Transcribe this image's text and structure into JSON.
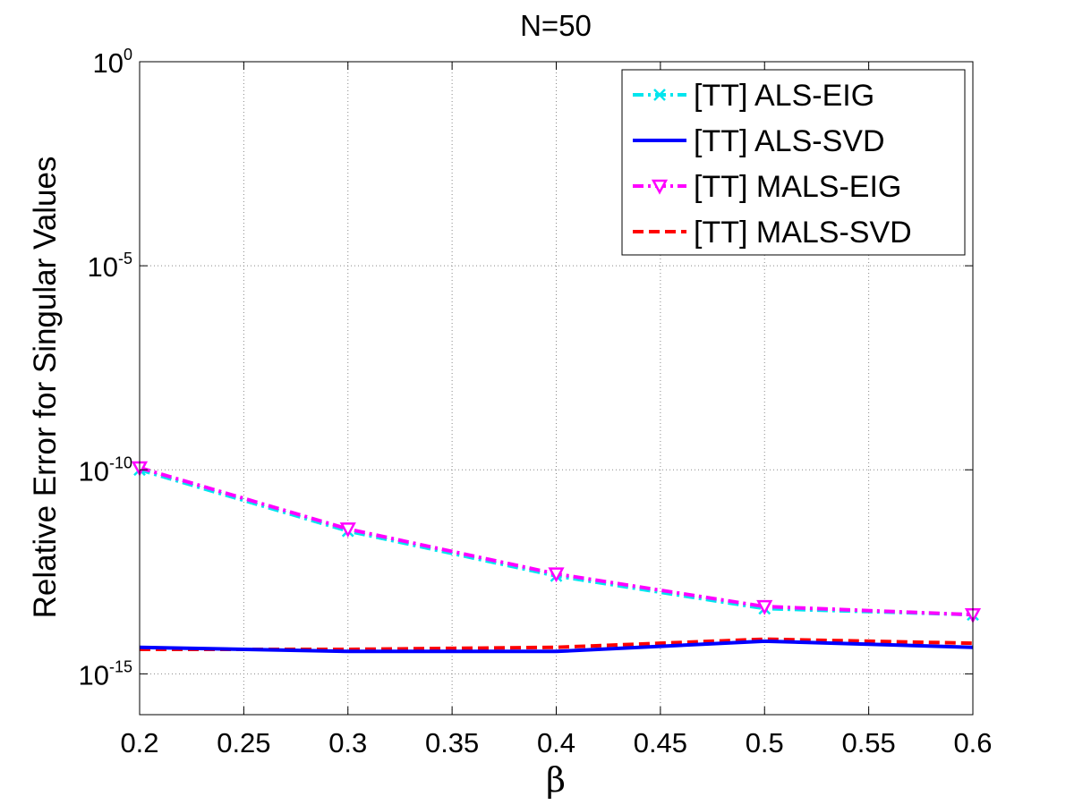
{
  "chart_data": {
    "type": "line",
    "title": "N=50",
    "xlabel": "β",
    "ylabel": "Relative Error for Singular Values",
    "yscale": "log",
    "xlim": [
      0.2,
      0.6
    ],
    "ylim_exp": [
      -16,
      0
    ],
    "x_ticks": [
      "0.2",
      "0.25",
      "0.3",
      "0.35",
      "0.4",
      "0.45",
      "0.5",
      "0.55",
      "0.6"
    ],
    "x_tick_values": [
      0.2,
      0.25,
      0.3,
      0.35,
      0.4,
      0.45,
      0.5,
      0.55,
      0.6
    ],
    "y_ticks": [
      {
        "base": "10",
        "exp": "0",
        "value_exp": 0
      },
      {
        "base": "10",
        "exp": "-5",
        "value_exp": -5
      },
      {
        "base": "10",
        "exp": "-10",
        "value_exp": -10
      },
      {
        "base": "10",
        "exp": "-15",
        "value_exp": -15
      }
    ],
    "grid": true,
    "legend_position": "top-right",
    "x": [
      0.2,
      0.3,
      0.4,
      0.5,
      0.6
    ],
    "series": [
      {
        "name": "[TT] ALS-EIG",
        "color": "#00e5ee",
        "dash": "dashdot",
        "marker": "x",
        "values_exp": [
          -10.0,
          -11.5,
          -12.6,
          -13.4,
          -13.55
        ]
      },
      {
        "name": "[TT] ALS-SVD",
        "color": "#0000ff",
        "dash": "solid",
        "marker": "none",
        "values_exp": [
          -14.35,
          -14.45,
          -14.45,
          -14.2,
          -14.35
        ]
      },
      {
        "name": "[TT] MALS-EIG",
        "color": "#ff00ff",
        "dash": "dashdot",
        "marker": "triangle-down",
        "values_exp": [
          -9.95,
          -11.45,
          -12.55,
          -13.35,
          -13.55
        ]
      },
      {
        "name": "[TT] MALS-SVD",
        "color": "#ff0000",
        "dash": "dashed",
        "marker": "none",
        "values_exp": [
          -14.4,
          -14.4,
          -14.35,
          -14.15,
          -14.25
        ]
      }
    ]
  }
}
